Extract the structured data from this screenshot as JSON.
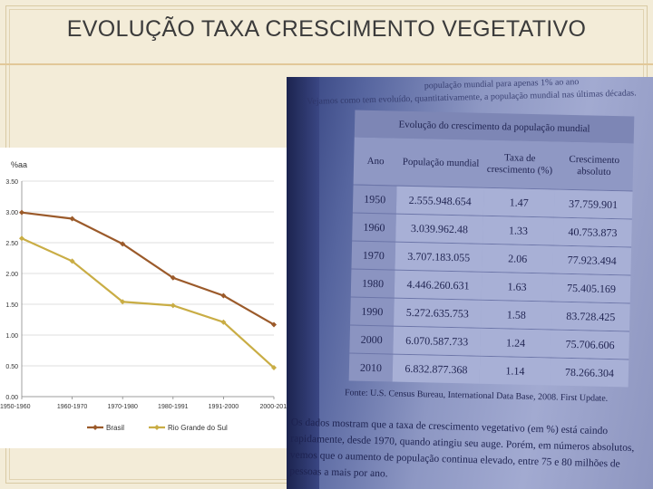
{
  "slide": {
    "title": "EVOLUÇÃO TAXA CRESCIMENTO VEGETATIVO"
  },
  "chart_data": {
    "type": "line",
    "title": "",
    "xlabel": "",
    "ylabel": "%aa",
    "categories": [
      "1950-1960",
      "1960-1970",
      "1970-1980",
      "1980-1991",
      "1991-2000",
      "2000-2010"
    ],
    "ylim": [
      0,
      3.5
    ],
    "yticks": [
      "0.00",
      "0.50",
      "1.00",
      "1.50",
      "2.00",
      "2.50",
      "3.00",
      "3.50"
    ],
    "grid": true,
    "legend": "bottom",
    "series": [
      {
        "name": "Brasil",
        "color": "#9b5a2a",
        "values": [
          2.99,
          2.89,
          2.48,
          1.93,
          1.64,
          1.17
        ]
      },
      {
        "name": "Rio Grande do Sul",
        "color": "#c9ad45",
        "values": [
          2.57,
          2.2,
          1.54,
          1.48,
          1.21,
          0.47
        ]
      }
    ]
  },
  "photo": {
    "top_lines": [
      "população mundial para apenas 1% ao ano",
      "Vejamos como tem evoluído, quantitativamente, a população mundial nas últimas décadas."
    ],
    "table": {
      "caption": "Evolução do crescimento da população mundial",
      "headers": [
        "Ano",
        "População mundial",
        "Taxa de crescimento (%)",
        "Crescimento absoluto"
      ],
      "rows": [
        [
          "1950",
          "2.555.948.654",
          "1.47",
          "37.759.901"
        ],
        [
          "1960",
          "3.039.962.48",
          "1.33",
          "40.753.873"
        ],
        [
          "1970",
          "3.707.183.055",
          "2.06",
          "77.923.494"
        ],
        [
          "1980",
          "4.446.260.631",
          "1.63",
          "75.405.169"
        ],
        [
          "1990",
          "5.272.635.753",
          "1.58",
          "83.728.425"
        ],
        [
          "2000",
          "6.070.587.733",
          "1.24",
          "75.706.606"
        ],
        [
          "2010",
          "6.832.877.368",
          "1.14",
          "78.266.304"
        ]
      ],
      "source": "Fonte: U.S. Census Bureau, International Data Base, 2008. First Update."
    },
    "paragraph": "Os dados mostram que a taxa de crescimento vegetativo (em %) está caindo rapidamente, desde 1970, quando atingiu seu auge. Porém, em números absolutos, vemos que o aumento de população continua elevado, entre 75 e 80 milhões de pessoas a mais por ano."
  }
}
